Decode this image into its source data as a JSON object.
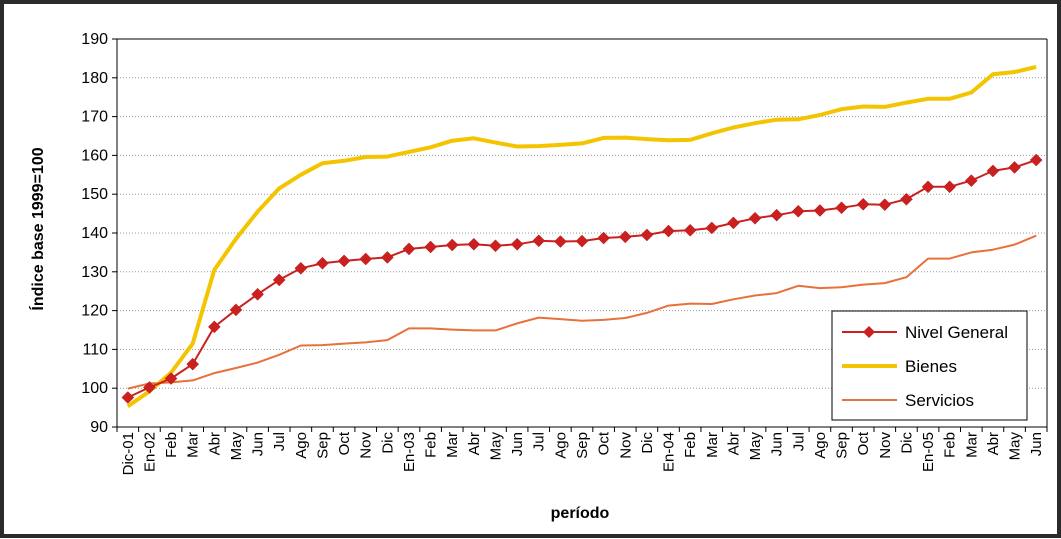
{
  "chart_data": {
    "type": "line",
    "title": "",
    "xlabel": "período",
    "ylabel": "Índice base 1999=100",
    "ylim": [
      90,
      190
    ],
    "yticks": [
      90,
      100,
      110,
      120,
      130,
      140,
      150,
      160,
      170,
      180,
      190
    ],
    "grid": "horizontal dotted",
    "legend_position": "bottom-right",
    "categories": [
      "Dic-01",
      "En-02",
      "Feb",
      "Mar",
      "Abr",
      "May",
      "Jun",
      "Jul",
      "Ago",
      "Sep",
      "Oct",
      "Nov",
      "Dic",
      "En-03",
      "Feb",
      "Mar",
      "Abr",
      "May",
      "Jun",
      "Jul",
      "Ago",
      "Sep",
      "Oct",
      "Nov",
      "Dic",
      "En-04",
      "Feb",
      "Mar",
      "Abr",
      "May",
      "Jun",
      "Jul",
      "Ago",
      "Sep",
      "Oct",
      "Nov",
      "Dic",
      "En-05",
      "Feb",
      "Mar",
      "Abr",
      "May",
      "Jun"
    ],
    "series": [
      {
        "name": "Nivel General",
        "color": "#cc2020",
        "marker": "diamond",
        "values": [
          97.6,
          100.2,
          102.5,
          106.2,
          115.8,
          120.2,
          124.2,
          127.9,
          130.9,
          132.2,
          132.8,
          133.3,
          133.7,
          135.9,
          136.4,
          136.9,
          137.1,
          136.7,
          137.1,
          138.0,
          137.8,
          137.9,
          138.7,
          139.0,
          139.5,
          140.5,
          140.7,
          141.3,
          142.6,
          143.8,
          144.6,
          145.6,
          145.8,
          146.5,
          147.4,
          147.3,
          148.7,
          151.9,
          151.9,
          153.5,
          156.0,
          156.9,
          158.8
        ]
      },
      {
        "name": "Bienes",
        "color": "#f4c400",
        "marker": "none",
        "values": [
          95.3,
          99.2,
          104.0,
          111.5,
          130.5,
          138.5,
          145.5,
          151.5,
          155.0,
          158.0,
          158.6,
          159.6,
          159.7,
          160.9,
          162.1,
          163.8,
          164.4,
          163.3,
          162.3,
          162.4,
          162.7,
          163.1,
          164.5,
          164.6,
          164.2,
          163.9,
          164.0,
          165.7,
          167.2,
          168.3,
          169.2,
          169.3,
          170.4,
          171.9,
          172.6,
          172.5,
          173.6,
          174.6,
          174.6,
          176.2,
          180.9,
          181.5,
          182.8
        ]
      },
      {
        "name": "Servicios",
        "color": "#e8703a",
        "marker": "none",
        "values": [
          99.9,
          101.2,
          101.5,
          102.0,
          103.9,
          105.2,
          106.6,
          108.6,
          111.0,
          111.1,
          111.5,
          111.8,
          112.4,
          115.4,
          115.4,
          115.1,
          114.9,
          114.9,
          116.7,
          118.2,
          117.8,
          117.4,
          117.6,
          118.1,
          119.4,
          121.3,
          121.8,
          121.7,
          122.9,
          123.9,
          124.5,
          126.4,
          125.8,
          126.0,
          126.7,
          127.1,
          128.6,
          133.4,
          133.4,
          135.0,
          135.7,
          137.0,
          139.3
        ]
      }
    ]
  }
}
